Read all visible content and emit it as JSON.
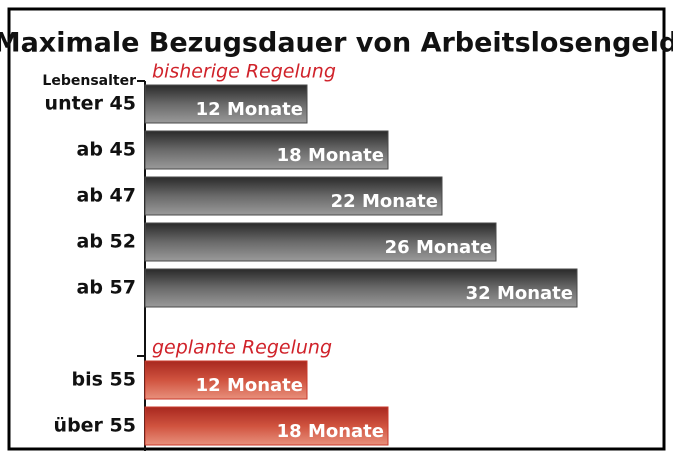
{
  "chart_data": {
    "type": "barh",
    "title": "Maximale Bezugsdauer von Arbeitslosengeld",
    "y_label": "Lebensalter",
    "categories": [
      "unter 45",
      "ab 45",
      "ab 47",
      "ab 52",
      "ab 57",
      null,
      "bis 55",
      "über 55"
    ],
    "series": [
      {
        "name": "bisherige Regelung",
        "color": "#4a4a4a",
        "values": [
          12,
          18,
          22,
          26,
          32,
          null,
          null,
          null
        ],
        "value_labels": [
          "12 Monate",
          "18 Monate",
          "22 Monate",
          "26 Monate",
          "32 Monate",
          null,
          null,
          null
        ]
      },
      {
        "name": "geplante Regelung",
        "color": "#c8392b",
        "values": [
          null,
          null,
          null,
          null,
          null,
          null,
          12,
          18
        ],
        "value_labels": [
          null,
          null,
          null,
          null,
          null,
          null,
          "12 Monate",
          "18 Monate"
        ]
      }
    ],
    "xlim": [
      0,
      32
    ]
  }
}
